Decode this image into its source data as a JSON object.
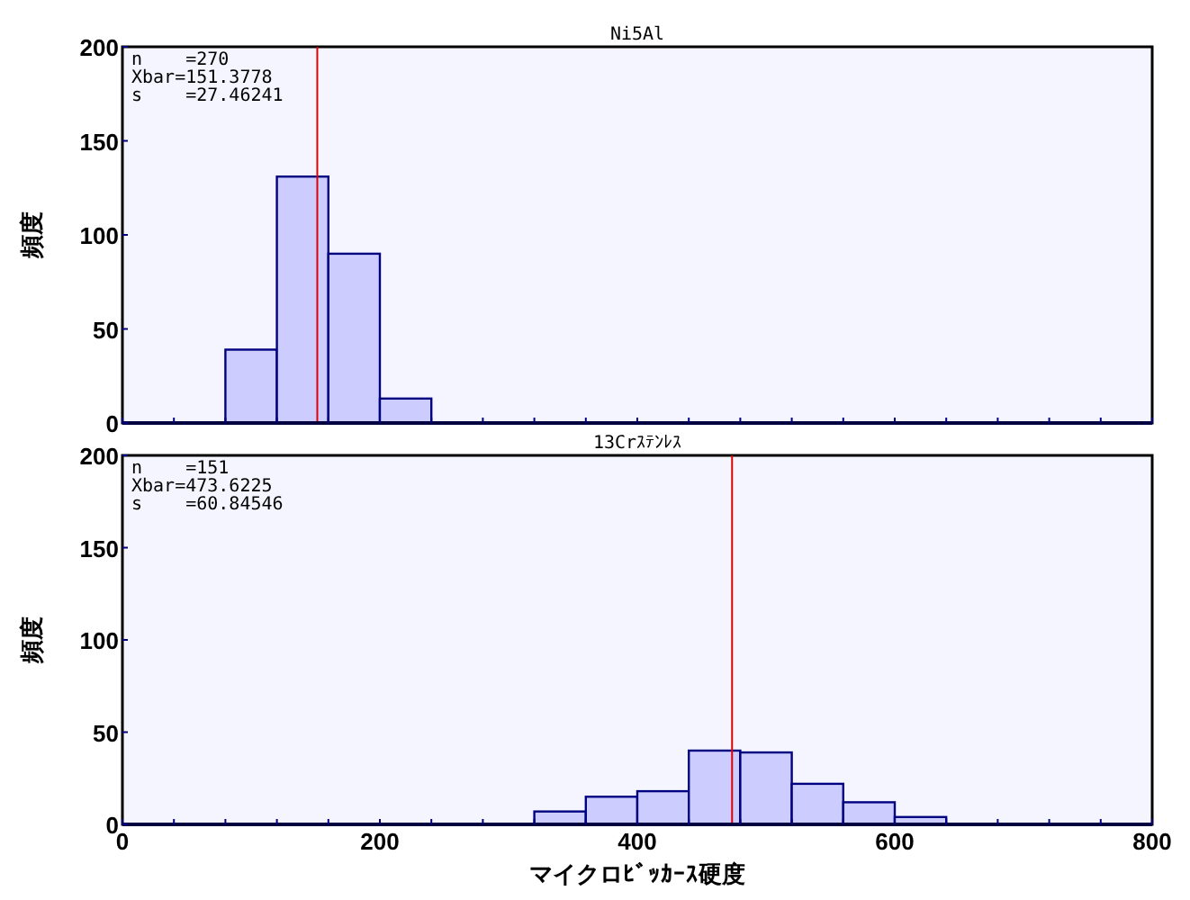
{
  "chart_data": [
    {
      "type": "histogram",
      "title": "Ni5Al",
      "ylabel": "頻度",
      "bins": [
        80,
        120,
        160,
        200,
        240
      ],
      "values": [
        39,
        131,
        90,
        13
      ],
      "color": "#ccccff",
      "xlim": [
        0,
        800
      ],
      "ylim": [
        0,
        200
      ],
      "xticks": [
        0,
        {
          "value": 40,
          "label": null
        },
        {
          "value": 80,
          "label": null
        },
        {
          "value": 120,
          "label": null
        },
        {
          "value": 160,
          "label": null
        },
        200,
        {
          "value": 240,
          "label": null
        },
        {
          "value": 280,
          "label": null
        },
        {
          "value": 320,
          "label": null
        },
        {
          "value": 360,
          "label": null
        },
        400,
        {
          "value": 440,
          "label": null
        },
        {
          "value": 480,
          "label": null
        },
        {
          "value": 520,
          "label": null
        },
        {
          "value": 560,
          "label": null
        },
        600,
        {
          "value": 640,
          "label": null
        },
        {
          "value": 680,
          "label": null
        },
        {
          "value": 720,
          "label": null
        },
        {
          "value": 760,
          "label": null
        },
        800
      ],
      "yticks": [
        0,
        50,
        100,
        150,
        200
      ],
      "tick_labels": "y",
      "ref_lines": [
        {
          "axis": "x",
          "value": 151.3778,
          "color": "#e00000"
        }
      ],
      "annotations": [
        "n    =270",
        "Xbar=151.3778",
        "s    =27.46241"
      ]
    },
    {
      "type": "histogram",
      "title": "13Crｽﾃﾝﾚｽ",
      "ylabel": "頻度",
      "xlabel": "マイクロﾋﾞｯｶｰｽ硬度",
      "bins": [
        320,
        360,
        400,
        440,
        480,
        520,
        560,
        600,
        640
      ],
      "values": [
        7,
        15,
        18,
        40,
        39,
        22,
        12,
        4
      ],
      "color": "#ccccff",
      "xlim": [
        0,
        800
      ],
      "ylim": [
        0,
        200
      ],
      "xticks": [
        0,
        {
          "value": 40,
          "label": null
        },
        {
          "value": 80,
          "label": null
        },
        {
          "value": 120,
          "label": null
        },
        {
          "value": 160,
          "label": null
        },
        200,
        {
          "value": 240,
          "label": null
        },
        {
          "value": 280,
          "label": null
        },
        {
          "value": 320,
          "label": null
        },
        {
          "value": 360,
          "label": null
        },
        400,
        {
          "value": 440,
          "label": null
        },
        {
          "value": 480,
          "label": null
        },
        {
          "value": 520,
          "label": null
        },
        {
          "value": 560,
          "label": null
        },
        600,
        {
          "value": 640,
          "label": null
        },
        {
          "value": 680,
          "label": null
        },
        {
          "value": 720,
          "label": null
        },
        {
          "value": 760,
          "label": null
        },
        800
      ],
      "yticks": [
        0,
        50,
        100,
        150,
        200
      ],
      "ref_lines": [
        {
          "axis": "x",
          "value": 473.6225,
          "color": "#e00000"
        }
      ],
      "annotations": [
        "n    =151",
        "Xbar=473.6225",
        "s    =60.84546"
      ]
    }
  ]
}
